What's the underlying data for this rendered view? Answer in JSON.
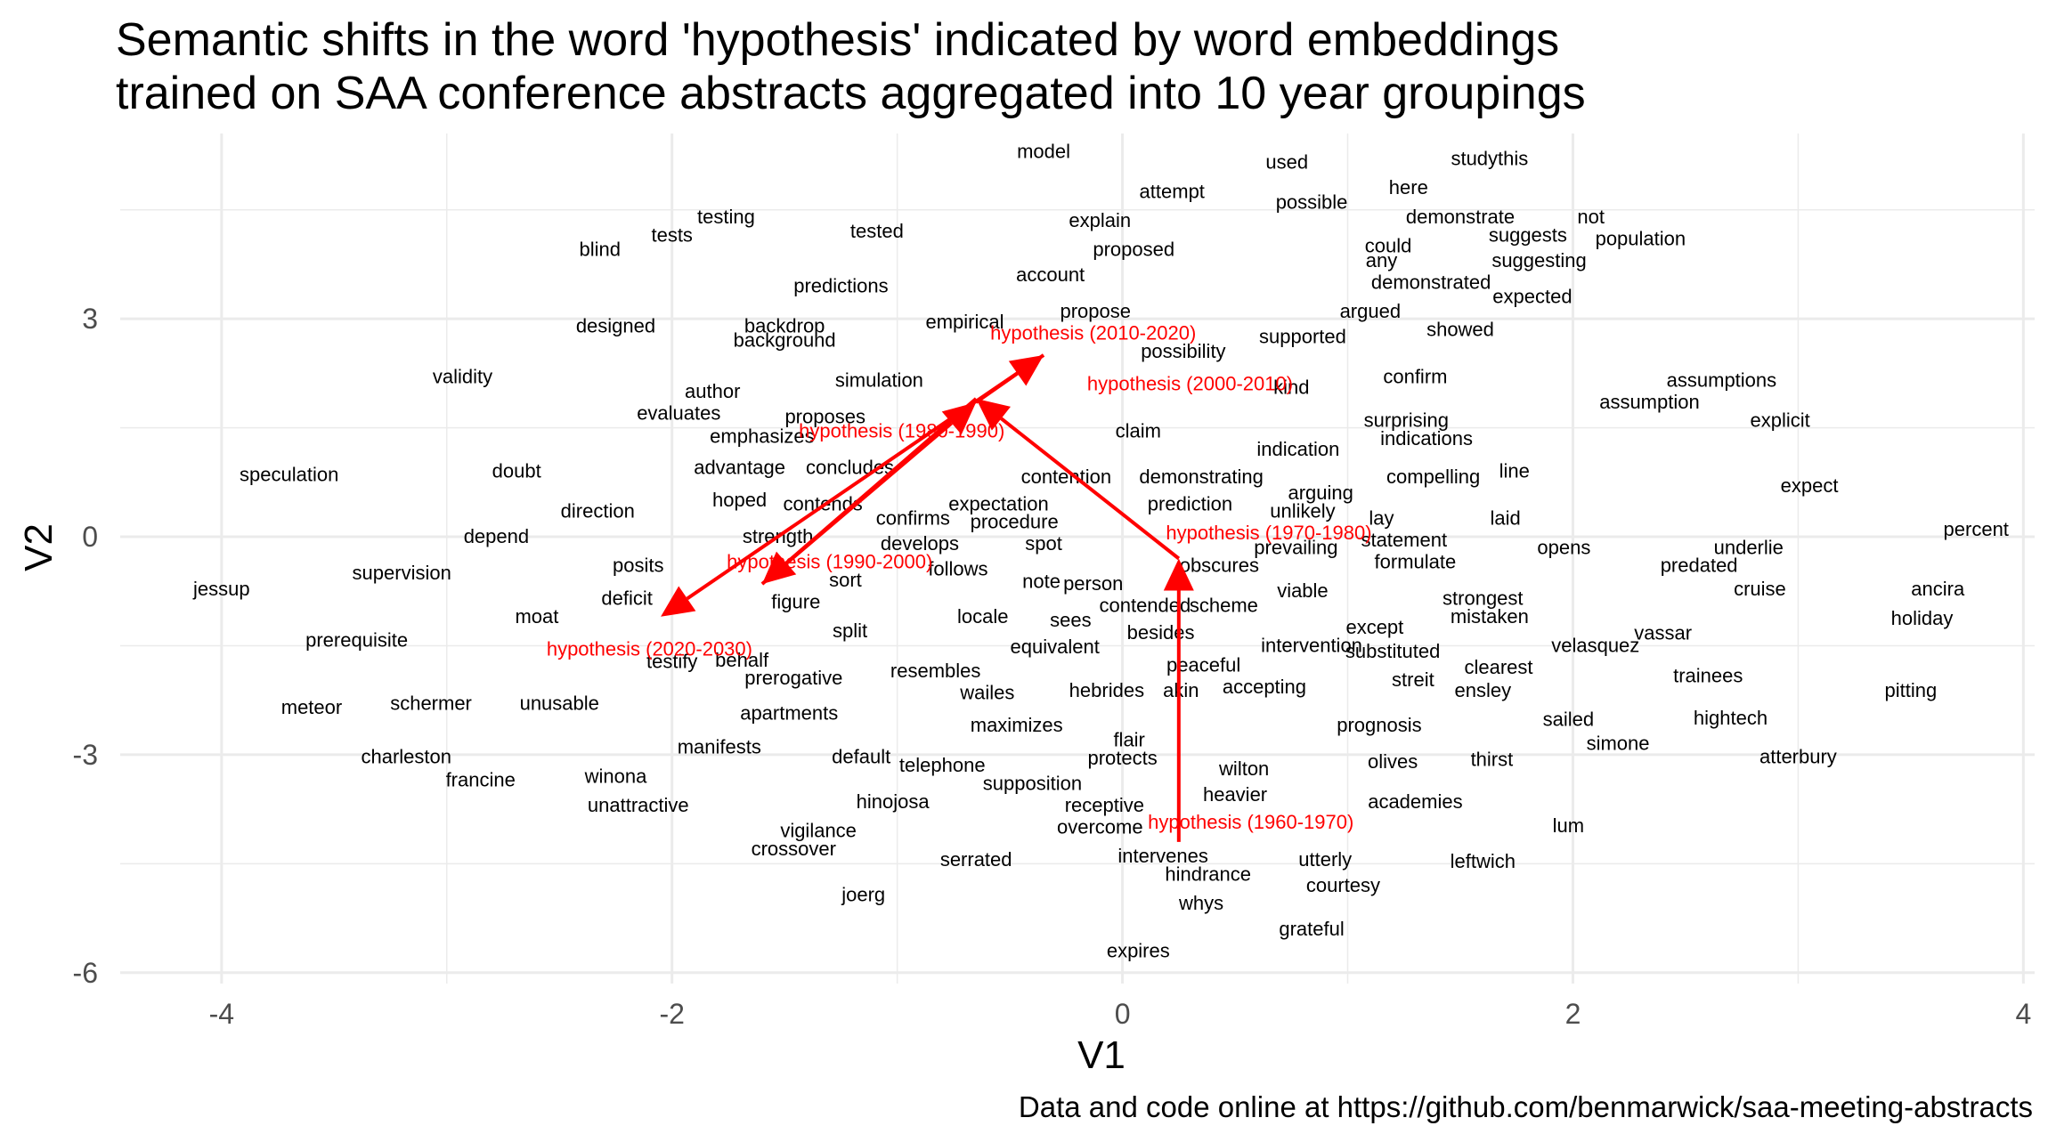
{
  "chart_data": {
    "type": "scatter",
    "title": "Semantic shifts in the word 'hypothesis' indicated by word embeddings",
    "subtitle": "trained on SAA conference abstracts aggregated into 10 year groupings",
    "caption": "Data and code online at https://github.com/benmarwick/saa-meeting-abstracts",
    "xlabel": "V1",
    "ylabel": "V2",
    "xlim": [
      -4.45,
      4.05
    ],
    "ylim": [
      -6.15,
      5.55
    ],
    "x_ticks": [
      -4,
      -2,
      0,
      2,
      4
    ],
    "y_ticks": [
      -6,
      -3,
      0,
      3
    ],
    "x_tick_labels": [
      "-4",
      "-2",
      "0",
      "2",
      "4"
    ],
    "y_tick_labels": [
      "-6",
      "-3",
      "0",
      "3"
    ],
    "grid": true,
    "colors": {
      "words": "#000000",
      "focal": "#ff0000",
      "grid": "#ebebeb",
      "ticks": "#4d4d4d"
    },
    "words": [
      {
        "label": "model",
        "x": -0.35,
        "y": 5.3
      },
      {
        "label": "used",
        "x": 0.73,
        "y": 5.15
      },
      {
        "label": "studythis",
        "x": 1.63,
        "y": 5.2
      },
      {
        "label": "attempt",
        "x": 0.22,
        "y": 4.75
      },
      {
        "label": "here",
        "x": 1.27,
        "y": 4.8
      },
      {
        "label": "possible",
        "x": 0.84,
        "y": 4.6
      },
      {
        "label": "testing",
        "x": -1.76,
        "y": 4.4
      },
      {
        "label": "explain",
        "x": -0.1,
        "y": 4.35
      },
      {
        "label": "demonstrate",
        "x": 1.5,
        "y": 4.4
      },
      {
        "label": "not",
        "x": 2.08,
        "y": 4.4
      },
      {
        "label": "tests",
        "x": -2.0,
        "y": 4.15
      },
      {
        "label": "tested",
        "x": -1.09,
        "y": 4.2
      },
      {
        "label": "suggests",
        "x": 1.8,
        "y": 4.15
      },
      {
        "label": "population",
        "x": 2.3,
        "y": 4.1
      },
      {
        "label": "blind",
        "x": -2.32,
        "y": 3.95
      },
      {
        "label": "proposed",
        "x": 0.05,
        "y": 3.95
      },
      {
        "label": "could",
        "x": 1.18,
        "y": 4.0
      },
      {
        "label": "any",
        "x": 1.15,
        "y": 3.8
      },
      {
        "label": "suggesting",
        "x": 1.85,
        "y": 3.8
      },
      {
        "label": "account",
        "x": -0.32,
        "y": 3.6
      },
      {
        "label": "demonstrated",
        "x": 1.37,
        "y": 3.5
      },
      {
        "label": "predictions",
        "x": -1.25,
        "y": 3.45
      },
      {
        "label": "expected",
        "x": 1.82,
        "y": 3.3
      },
      {
        "label": "propose",
        "x": -0.12,
        "y": 3.1
      },
      {
        "label": "argued",
        "x": 1.1,
        "y": 3.1
      },
      {
        "label": "empirical",
        "x": -0.7,
        "y": 2.95
      },
      {
        "label": "designed",
        "x": -2.25,
        "y": 2.9
      },
      {
        "label": "backdrop",
        "x": -1.5,
        "y": 2.9
      },
      {
        "label": "showed",
        "x": 1.5,
        "y": 2.85
      },
      {
        "label": "background",
        "x": -1.5,
        "y": 2.7
      },
      {
        "label": "supported",
        "x": 0.8,
        "y": 2.75
      },
      {
        "label": "possibility",
        "x": 0.27,
        "y": 2.55
      },
      {
        "label": "validity",
        "x": -2.93,
        "y": 2.2
      },
      {
        "label": "simulation",
        "x": -1.08,
        "y": 2.15
      },
      {
        "label": "confirm",
        "x": 1.3,
        "y": 2.2
      },
      {
        "label": "assumptions",
        "x": 2.66,
        "y": 2.15
      },
      {
        "label": "author",
        "x": -1.82,
        "y": 2.0
      },
      {
        "label": "kind",
        "x": 0.75,
        "y": 2.05
      },
      {
        "label": "assumption",
        "x": 2.34,
        "y": 1.85
      },
      {
        "label": "evaluates",
        "x": -1.97,
        "y": 1.7
      },
      {
        "label": "proposes",
        "x": -1.32,
        "y": 1.65
      },
      {
        "label": "surprising",
        "x": 1.26,
        "y": 1.6
      },
      {
        "label": "explicit",
        "x": 2.92,
        "y": 1.6
      },
      {
        "label": "claim",
        "x": 0.07,
        "y": 1.45
      },
      {
        "label": "emphasizes",
        "x": -1.6,
        "y": 1.38
      },
      {
        "label": "indications",
        "x": 1.35,
        "y": 1.35
      },
      {
        "label": "indication",
        "x": 0.78,
        "y": 1.2
      },
      {
        "label": "speculation",
        "x": -3.7,
        "y": 0.85
      },
      {
        "label": "doubt",
        "x": -2.69,
        "y": 0.9
      },
      {
        "label": "advantage",
        "x": -1.7,
        "y": 0.95
      },
      {
        "label": "concludes",
        "x": -1.21,
        "y": 0.95
      },
      {
        "label": "line",
        "x": 1.74,
        "y": 0.9
      },
      {
        "label": "contention",
        "x": -0.25,
        "y": 0.82
      },
      {
        "label": "demonstrating",
        "x": 0.35,
        "y": 0.82
      },
      {
        "label": "compelling",
        "x": 1.38,
        "y": 0.82
      },
      {
        "label": "expect",
        "x": 3.05,
        "y": 0.7
      },
      {
        "label": "arguing",
        "x": 0.88,
        "y": 0.6
      },
      {
        "label": "hoped",
        "x": -1.7,
        "y": 0.5
      },
      {
        "label": "contends",
        "x": -1.33,
        "y": 0.45
      },
      {
        "label": "expectation",
        "x": -0.55,
        "y": 0.45
      },
      {
        "label": "prediction",
        "x": 0.3,
        "y": 0.45
      },
      {
        "label": "direction",
        "x": -2.33,
        "y": 0.35
      },
      {
        "label": "unlikely",
        "x": 0.8,
        "y": 0.35
      },
      {
        "label": "confirms",
        "x": -0.93,
        "y": 0.25
      },
      {
        "label": "procedure",
        "x": -0.48,
        "y": 0.2
      },
      {
        "label": "lay",
        "x": 1.15,
        "y": 0.25
      },
      {
        "label": "laid",
        "x": 1.7,
        "y": 0.25
      },
      {
        "label": "depend",
        "x": -2.78,
        "y": 0.0
      },
      {
        "label": "strength",
        "x": -1.53,
        "y": 0.0
      },
      {
        "label": "statement",
        "x": 1.25,
        "y": -0.05
      },
      {
        "label": "percent",
        "x": 3.79,
        "y": 0.1
      },
      {
        "label": "develops",
        "x": -0.9,
        "y": -0.1
      },
      {
        "label": "spot",
        "x": -0.35,
        "y": -0.1
      },
      {
        "label": "prevailing",
        "x": 0.77,
        "y": -0.15
      },
      {
        "label": "opens",
        "x": 1.96,
        "y": -0.15
      },
      {
        "label": "underlie",
        "x": 2.78,
        "y": -0.15
      },
      {
        "label": "posits",
        "x": -2.15,
        "y": -0.4
      },
      {
        "label": "follows",
        "x": -0.73,
        "y": -0.45
      },
      {
        "label": "obscures",
        "x": 0.43,
        "y": -0.4
      },
      {
        "label": "formulate",
        "x": 1.3,
        "y": -0.35
      },
      {
        "label": "predated",
        "x": 2.56,
        "y": -0.4
      },
      {
        "label": "supervision",
        "x": -3.2,
        "y": -0.5
      },
      {
        "label": "sort",
        "x": -1.23,
        "y": -0.6
      },
      {
        "label": "note",
        "x": -0.36,
        "y": -0.62
      },
      {
        "label": "person",
        "x": -0.13,
        "y": -0.65
      },
      {
        "label": "jessup",
        "x": -4.0,
        "y": -0.72
      },
      {
        "label": "viable",
        "x": 0.8,
        "y": -0.75
      },
      {
        "label": "ancira",
        "x": 3.62,
        "y": -0.72
      },
      {
        "label": "cruise",
        "x": 2.83,
        "y": -0.72
      },
      {
        "label": "deficit",
        "x": -2.2,
        "y": -0.85
      },
      {
        "label": "figure",
        "x": -1.45,
        "y": -0.9
      },
      {
        "label": "contended",
        "x": 0.1,
        "y": -0.95
      },
      {
        "label": "scheme",
        "x": 0.45,
        "y": -0.95
      },
      {
        "label": "strongest",
        "x": 1.6,
        "y": -0.85
      },
      {
        "label": "moat",
        "x": -2.6,
        "y": -1.1
      },
      {
        "label": "locale",
        "x": -0.62,
        "y": -1.1
      },
      {
        "label": "sees",
        "x": -0.23,
        "y": -1.15
      },
      {
        "label": "mistaken",
        "x": 1.63,
        "y": -1.1
      },
      {
        "label": "holiday",
        "x": 3.55,
        "y": -1.13
      },
      {
        "label": "except",
        "x": 1.12,
        "y": -1.25
      },
      {
        "label": "vassar",
        "x": 2.4,
        "y": -1.33
      },
      {
        "label": "split",
        "x": -1.21,
        "y": -1.3
      },
      {
        "label": "besides",
        "x": 0.17,
        "y": -1.32
      },
      {
        "label": "prerequisite",
        "x": -3.4,
        "y": -1.43
      },
      {
        "label": "equivalent",
        "x": -0.3,
        "y": -1.52
      },
      {
        "label": "intervention",
        "x": 0.84,
        "y": -1.5
      },
      {
        "label": "velasquez",
        "x": 2.1,
        "y": -1.5
      },
      {
        "label": "substituted",
        "x": 1.2,
        "y": -1.58
      },
      {
        "label": "testify",
        "x": -2.0,
        "y": -1.72
      },
      {
        "label": "behalf",
        "x": -1.69,
        "y": -1.7
      },
      {
        "label": "peaceful",
        "x": 0.36,
        "y": -1.77
      },
      {
        "label": "clearest",
        "x": 1.67,
        "y": -1.8
      },
      {
        "label": "resembles",
        "x": -0.83,
        "y": -1.85
      },
      {
        "label": "trainees",
        "x": 2.6,
        "y": -1.92
      },
      {
        "label": "prerogative",
        "x": -1.46,
        "y": -1.95
      },
      {
        "label": "streit",
        "x": 1.29,
        "y": -1.97
      },
      {
        "label": "wailes",
        "x": -0.6,
        "y": -2.15
      },
      {
        "label": "hebrides",
        "x": -0.07,
        "y": -2.12
      },
      {
        "label": "akin",
        "x": 0.26,
        "y": -2.12
      },
      {
        "label": "accepting",
        "x": 0.63,
        "y": -2.07
      },
      {
        "label": "ensley",
        "x": 1.6,
        "y": -2.12
      },
      {
        "label": "pitting",
        "x": 3.5,
        "y": -2.12
      },
      {
        "label": "meteor",
        "x": -3.6,
        "y": -2.35
      },
      {
        "label": "schermer",
        "x": -3.07,
        "y": -2.3
      },
      {
        "label": "unusable",
        "x": -2.5,
        "y": -2.3
      },
      {
        "label": "apartments",
        "x": -1.48,
        "y": -2.43
      },
      {
        "label": "hightech",
        "x": 2.7,
        "y": -2.5
      },
      {
        "label": "sailed",
        "x": 1.98,
        "y": -2.52
      },
      {
        "label": "maximizes",
        "x": -0.47,
        "y": -2.6
      },
      {
        "label": "prognosis",
        "x": 1.14,
        "y": -2.6
      },
      {
        "label": "flair",
        "x": 0.03,
        "y": -2.8
      },
      {
        "label": "simone",
        "x": 2.2,
        "y": -2.85
      },
      {
        "label": "manifests",
        "x": -1.79,
        "y": -2.9
      },
      {
        "label": "default",
        "x": -1.16,
        "y": -3.03
      },
      {
        "label": "protects",
        "x": 0.0,
        "y": -3.05
      },
      {
        "label": "charleston",
        "x": -3.18,
        "y": -3.03
      },
      {
        "label": "thirst",
        "x": 1.64,
        "y": -3.07
      },
      {
        "label": "atterbury",
        "x": 3.0,
        "y": -3.03
      },
      {
        "label": "olives",
        "x": 1.2,
        "y": -3.1
      },
      {
        "label": "telephone",
        "x": -0.8,
        "y": -3.15
      },
      {
        "label": "wilton",
        "x": 0.54,
        "y": -3.2
      },
      {
        "label": "winona",
        "x": -2.25,
        "y": -3.3
      },
      {
        "label": "francine",
        "x": -2.85,
        "y": -3.35
      },
      {
        "label": "supposition",
        "x": -0.4,
        "y": -3.4
      },
      {
        "label": "heavier",
        "x": 0.5,
        "y": -3.55
      },
      {
        "label": "hinojosa",
        "x": -1.02,
        "y": -3.65
      },
      {
        "label": "unattractive",
        "x": -2.15,
        "y": -3.7
      },
      {
        "label": "receptive",
        "x": -0.08,
        "y": -3.7
      },
      {
        "label": "academies",
        "x": 1.3,
        "y": -3.65
      },
      {
        "label": "lum",
        "x": 1.98,
        "y": -3.98
      },
      {
        "label": "overcome",
        "x": -0.1,
        "y": -4.0
      },
      {
        "label": "vigilance",
        "x": -1.35,
        "y": -4.05
      },
      {
        "label": "crossover",
        "x": -1.46,
        "y": -4.3
      },
      {
        "label": "serrated",
        "x": -0.65,
        "y": -4.45
      },
      {
        "label": "intervenes",
        "x": 0.18,
        "y": -4.4
      },
      {
        "label": "utterly",
        "x": 0.9,
        "y": -4.45
      },
      {
        "label": "leftwich",
        "x": 1.6,
        "y": -4.47
      },
      {
        "label": "hindrance",
        "x": 0.38,
        "y": -4.65
      },
      {
        "label": "courtesy",
        "x": 0.98,
        "y": -4.8
      },
      {
        "label": "joerg",
        "x": -1.15,
        "y": -4.93
      },
      {
        "label": "whys",
        "x": 0.35,
        "y": -5.05
      },
      {
        "label": "grateful",
        "x": 0.84,
        "y": -5.4
      },
      {
        "label": "expires",
        "x": 0.07,
        "y": -5.7
      }
    ],
    "focal_points": [
      {
        "label": "hypothesis (1960-1970)",
        "x": 0.25,
        "y": -4.2
      },
      {
        "label": "hypothesis (1970-1980)",
        "x": 0.25,
        "y": -0.3
      },
      {
        "label": "hypothesis (1980-1990)",
        "x": -0.65,
        "y": 1.9
      },
      {
        "label": "hypothesis (1990-2000)",
        "x": -1.6,
        "y": -0.65
      },
      {
        "label": "hypothesis (2000-2010)",
        "x": -0.65,
        "y": 1.85
      },
      {
        "label": "hypothesis (2010-2020)",
        "x": -0.35,
        "y": 2.5
      },
      {
        "label": "hypothesis (2020-2030)",
        "x": -2.05,
        "y": -1.1
      }
    ],
    "focal_label_positions": [
      {
        "x": 0.57,
        "y": -3.93
      },
      {
        "x": 0.65,
        "y": 0.05
      },
      {
        "x": -0.98,
        "y": 1.45
      },
      {
        "x": -1.3,
        "y": -0.35
      },
      {
        "x": 0.3,
        "y": 2.1
      },
      {
        "x": -0.13,
        "y": 2.8
      },
      {
        "x": -2.1,
        "y": -1.55
      }
    ]
  }
}
